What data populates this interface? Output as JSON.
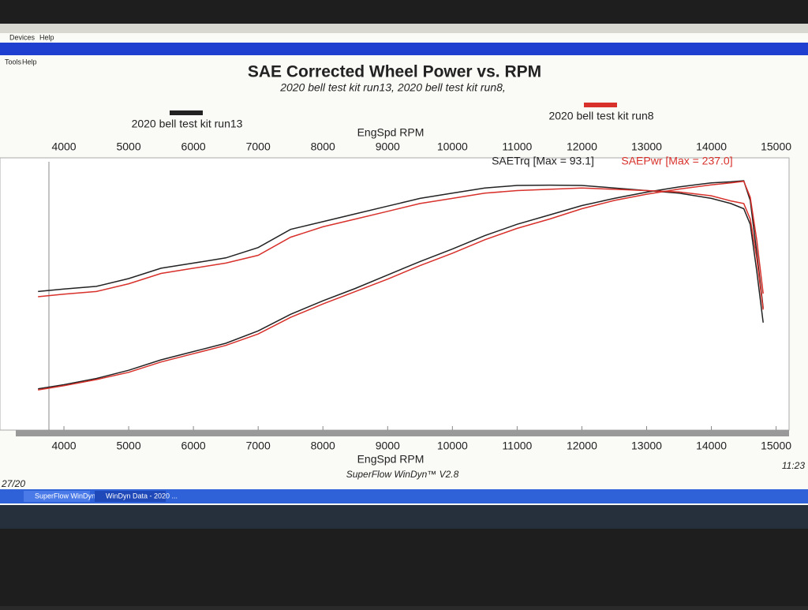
{
  "window": {
    "menu": [
      "Devices",
      "Help"
    ],
    "submenu": [
      "Tools",
      "Help"
    ],
    "clock": "11:23",
    "date": "27/20",
    "taskbar": [
      "SuperFlow WinDyn - [...",
      "WinDyn Data - 2020 ..."
    ]
  },
  "chart_data": {
    "type": "line",
    "title": "SAE Corrected Wheel Power vs. RPM",
    "subtitle": "2020 bell test kit run13, 2020 bell test kit run8,",
    "x_label": "EngSpd  RPM",
    "footer": "SuperFlow WinDyn™ V2.8",
    "annotations": [
      {
        "text": "SAETrq [Max = 93.1]",
        "color": "#222222"
      },
      {
        "text": "SAEPwr [Max = 237.0]",
        "color": "#d8302a"
      }
    ],
    "xlim": [
      3500,
      15200
    ],
    "xticks": [
      4000,
      5000,
      6000,
      7000,
      8000,
      9000,
      10000,
      11000,
      12000,
      13000,
      14000,
      15000
    ],
    "torque_ylim": [
      0,
      100
    ],
    "power_ylim": [
      0,
      250
    ],
    "x": [
      3600,
      4000,
      4500,
      5000,
      5500,
      6000,
      6500,
      7000,
      7500,
      8000,
      8500,
      9000,
      9500,
      10000,
      10500,
      11000,
      11500,
      12000,
      12500,
      13000,
      13500,
      14000,
      14300,
      14500,
      14600,
      14700,
      14800
    ],
    "series": [
      {
        "name": "2020 bell test kit run13",
        "color": "#222222",
        "torque": [
          52,
          53,
          54,
          57,
          61,
          63,
          65,
          69,
          76,
          79,
          82,
          85,
          88,
          90,
          92,
          93,
          93.1,
          93,
          92,
          91,
          90,
          88,
          86,
          84,
          78,
          60,
          40
        ],
        "power": [
          36,
          40,
          46,
          54,
          64,
          72,
          80,
          92,
          108,
          121,
          133,
          146,
          159,
          171,
          184,
          195,
          204,
          213,
          220,
          226,
          231,
          235,
          236,
          237,
          218,
          168,
          114
        ]
      },
      {
        "name": "2020 bell test kit run8",
        "color": "#d8302a",
        "torque": [
          50,
          51,
          52,
          55,
          59,
          61,
          63,
          66,
          73,
          77,
          80,
          83,
          86,
          88,
          90,
          91,
          91.5,
          92,
          91.5,
          91,
          90.5,
          89,
          87,
          86,
          80,
          65,
          45
        ],
        "power": [
          35,
          39,
          45,
          52,
          62,
          70,
          78,
          89,
          105,
          118,
          130,
          142,
          155,
          167,
          180,
          191,
          200,
          210,
          218,
          224,
          229,
          233,
          235,
          236.5,
          221,
          180,
          128
        ]
      }
    ]
  }
}
